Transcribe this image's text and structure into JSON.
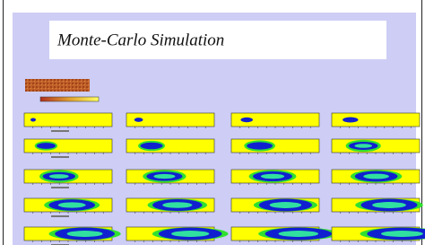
{
  "slide": {
    "title": "Monte-Carlo Simulation"
  }
}
